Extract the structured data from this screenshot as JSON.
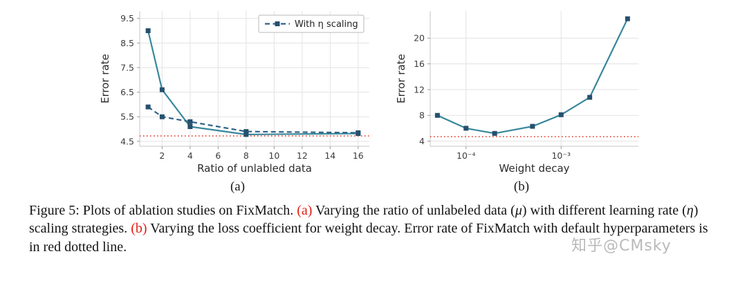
{
  "figure": {
    "sublabel_a": "(a)",
    "sublabel_b": "(b)"
  },
  "colors": {
    "line": "#37879b",
    "dashed_line": "#2e6288",
    "marker": "#26506e",
    "ref": "#e8402f",
    "caption_ref": "#e21d12",
    "grid": "#e2e2e2",
    "spine": "#c6c6c6",
    "tick": "#9a9a9a",
    "tick_text": "#3c3c3c",
    "label_text": "#2b2b2b"
  },
  "chart_data": [
    {
      "label": "(a)",
      "type": "line",
      "xlabel": "Ratio of unlabled data",
      "ylabel": "Error rate",
      "xscale": "linear",
      "xlim": [
        0.4,
        16.8
      ],
      "ylim": [
        4.3,
        9.8
      ],
      "xticks": [
        {
          "v": 2,
          "label": "2"
        },
        {
          "v": 4,
          "label": "4"
        },
        {
          "v": 6,
          "label": "6"
        },
        {
          "v": 8,
          "label": "8"
        },
        {
          "v": 10,
          "label": "10"
        },
        {
          "v": 12,
          "label": "12"
        },
        {
          "v": 14,
          "label": "14"
        },
        {
          "v": 16,
          "label": "16"
        }
      ],
      "yticks": [
        {
          "v": 4.5,
          "label": "4.5"
        },
        {
          "v": 5.5,
          "label": "5.5"
        },
        {
          "v": 6.5,
          "label": "6.5"
        },
        {
          "v": 7.5,
          "label": "7.5"
        },
        {
          "v": 8.5,
          "label": "8.5"
        },
        {
          "v": 9.5,
          "label": "9.5"
        }
      ],
      "refline": {
        "y": 4.72,
        "meaning": "FixMatch default error rate (red dotted)"
      },
      "series": [
        {
          "name": "",
          "style": "solid",
          "color": "#37879b",
          "x": [
            1,
            2,
            4,
            8,
            16
          ],
          "y": [
            9.0,
            6.6,
            5.1,
            4.78,
            4.82
          ]
        },
        {
          "name": "With η scaling",
          "style": "dashed",
          "color": "#2e6288",
          "x": [
            1,
            2,
            4,
            8,
            16
          ],
          "y": [
            5.9,
            5.5,
            5.3,
            4.9,
            4.85
          ]
        }
      ],
      "legend": [
        "With η scaling"
      ],
      "legend_position": "upper right",
      "grid": true
    },
    {
      "label": "(b)",
      "type": "line",
      "xlabel": "Weight decay",
      "ylabel": "Error rate",
      "xscale": "log",
      "xlim": [
        4.2e-05,
        0.0065
      ],
      "ylim": [
        3.2,
        24.2
      ],
      "xticks": [
        {
          "v": 0.0001,
          "label": "10⁻⁴"
        },
        {
          "v": 0.001,
          "label": "10⁻³"
        }
      ],
      "yticks": [
        {
          "v": 4,
          "label": "4"
        },
        {
          "v": 8,
          "label": "8"
        },
        {
          "v": 12,
          "label": "12"
        },
        {
          "v": 16,
          "label": "16"
        },
        {
          "v": 20,
          "label": "20"
        }
      ],
      "refline": {
        "y": 4.7,
        "meaning": "FixMatch default error rate (red dotted)"
      },
      "series": [
        {
          "name": "",
          "style": "solid",
          "color": "#37879b",
          "x": [
            5e-05,
            0.0001,
            0.0002,
            0.0005,
            0.001,
            0.002,
            0.005
          ],
          "y": [
            8.0,
            6.0,
            5.2,
            6.3,
            8.1,
            10.8,
            23.0
          ]
        }
      ],
      "legend": [],
      "grid": true
    }
  ],
  "caption": {
    "segments": [
      {
        "t": "Figure 5: Plots of ablation studies on FixMatch. "
      },
      {
        "t": "(a)",
        "c": "ref"
      },
      {
        "t": " Varying the ratio of unlabeled data ("
      },
      {
        "t": "μ",
        "i": true
      },
      {
        "t": ") with different learning rate ("
      },
      {
        "t": "η",
        "i": true
      },
      {
        "t": ") scaling strategies. "
      },
      {
        "t": "(b)",
        "c": "ref"
      },
      {
        "t": " Varying the loss coefficient for weight decay. Error rate of FixMatch with default hyperparameters is in red dotted line."
      }
    ]
  },
  "watermark": {
    "text": "知乎@CMsky"
  }
}
